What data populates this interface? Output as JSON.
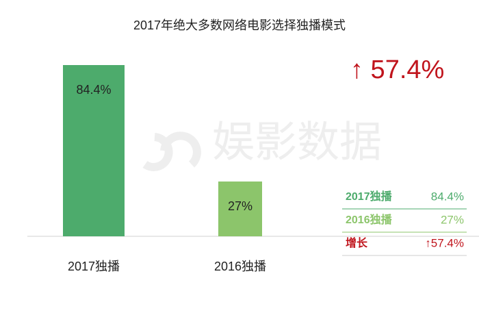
{
  "chart_data": {
    "type": "bar",
    "title": "2017年绝大多数网络电影选择独播模式",
    "categories": [
      "2017独播",
      "2016独播"
    ],
    "values": [
      84.4,
      27
    ],
    "value_labels": [
      "84.4%",
      "27%"
    ],
    "colors": [
      "#4dab6c",
      "#8cc56b"
    ],
    "annotation": "↑ 57.4%",
    "watermark": "娱影数据",
    "summary": [
      {
        "label": "2017独播",
        "value": "84.4%",
        "color": "#4dab6c"
      },
      {
        "label": "2016独播",
        "value": "27%",
        "color": "#8cc56b"
      },
      {
        "label": "增长",
        "value": "↑57.4%",
        "color": "#c0141c"
      }
    ]
  }
}
